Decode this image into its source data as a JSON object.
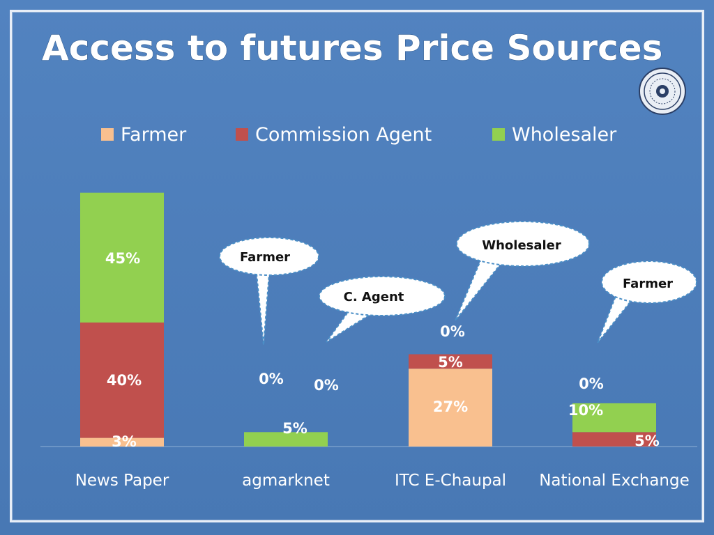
{
  "slide": {
    "title": "Access to futures Price Sources"
  },
  "colors": {
    "Farmer": "#f9c08f",
    "Commission Agent": "#c0504d",
    "Wholesaler": "#92d050",
    "background": "#4f81bd"
  },
  "chart_data": {
    "type": "bar",
    "stacked": true,
    "categories": [
      "News Paper",
      "agmarknet",
      "ITC E-Chaupal",
      "National Exchange"
    ],
    "series": [
      {
        "name": "Farmer",
        "values": [
          3,
          0,
          27,
          0
        ]
      },
      {
        "name": "Commission Agent",
        "values": [
          40,
          0,
          5,
          5
        ]
      },
      {
        "name": "Wholesaler",
        "values": [
          45,
          5,
          0,
          10
        ]
      }
    ],
    "data_labels": [
      [
        "3%",
        "40%",
        "45%"
      ],
      [
        "0%",
        "0%",
        "5%"
      ],
      [
        "27%",
        "5%",
        "0%"
      ],
      [
        "0%",
        "5%",
        "10%"
      ]
    ],
    "legend_position": "top",
    "grid": false,
    "callouts": [
      "Farmer",
      "C. Agent",
      "Wholesaler",
      "Farmer"
    ]
  }
}
